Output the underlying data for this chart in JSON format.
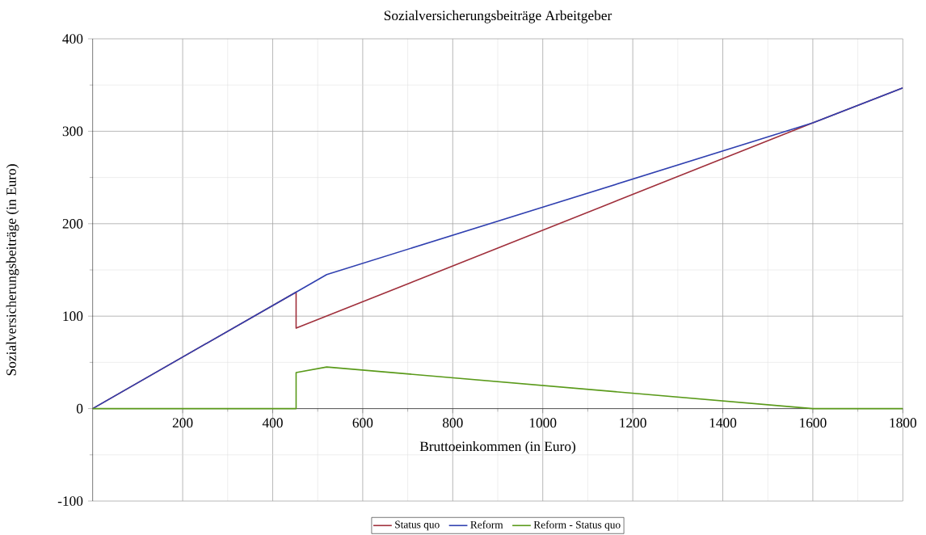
{
  "chart_data": {
    "type": "line",
    "title": "Sozialversicherungsbeiträge Arbeitgeber",
    "xlabel": "Bruttoeinkommen (in Euro)",
    "ylabel": "Sozialversicherungsbeiträge (in Euro)",
    "xlim": [
      0,
      1800
    ],
    "ylim": [
      -100,
      400
    ],
    "xticks": [
      200,
      400,
      600,
      800,
      1000,
      1200,
      1400,
      1600,
      1800
    ],
    "yticks": [
      -100,
      0,
      100,
      200,
      300,
      400
    ],
    "grid": true,
    "legend": "bottom",
    "series": [
      {
        "name": "Status quo",
        "color": "#a0303c",
        "x": [
          0,
          452,
          452,
          1600,
          1800
        ],
        "values": [
          0,
          126,
          87,
          309,
          347
        ]
      },
      {
        "name": "Reform",
        "color": "#3040b0",
        "x": [
          0,
          452,
          520,
          1600,
          1800
        ],
        "values": [
          0,
          126,
          145,
          309,
          347
        ]
      },
      {
        "name": "Reform - Status quo",
        "color": "#5a9a1a",
        "x": [
          0,
          452,
          452,
          520,
          1600,
          1800
        ],
        "values": [
          0,
          0,
          39,
          45,
          0,
          0
        ]
      }
    ]
  }
}
